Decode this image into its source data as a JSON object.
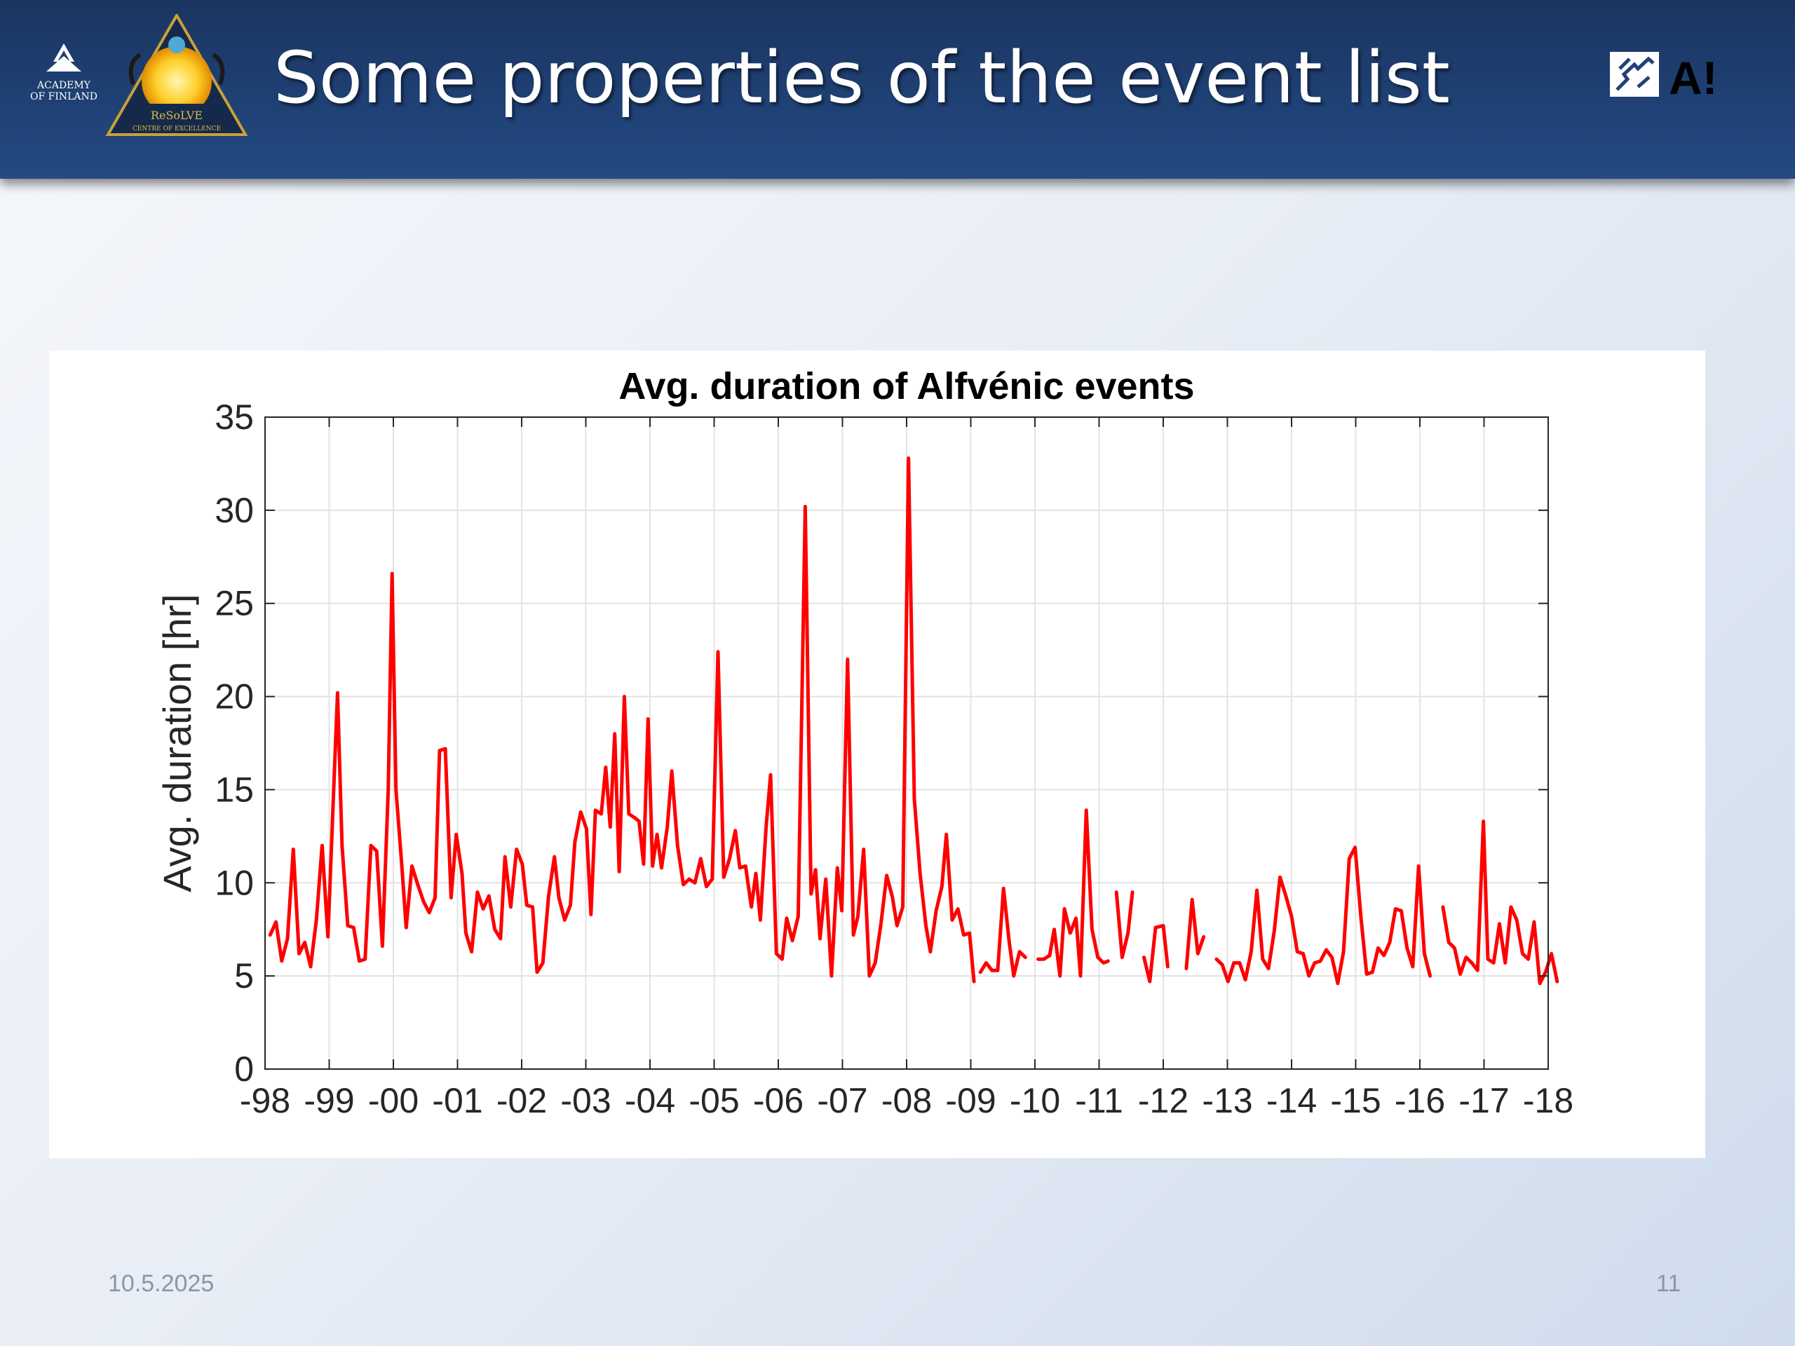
{
  "slide": {
    "title": "Some properties of the event list",
    "date": "10.5.2025",
    "page_number": "11"
  },
  "logos": {
    "academy": [
      "ACADEMY",
      "OF FINLAND"
    ],
    "resolve": [
      "ReSoLVE",
      "CENTRE OF EXCELLENCE"
    ],
    "aalto_mark": "A!"
  },
  "colors": {
    "header_bg": "#1f4175",
    "line": "#ff0000",
    "aalto_yellow": "#ffd100"
  },
  "chart_data": {
    "type": "line",
    "title": "Avg. duration of Alfvénic events",
    "xlabel": "",
    "ylabel": "Avg. duration [hr]",
    "xlim": [
      0,
      20
    ],
    "ylim": [
      0,
      35
    ],
    "xtick_labels": [
      "-98",
      "-99",
      "-00",
      "-01",
      "-02",
      "-03",
      "-04",
      "-05",
      "-06",
      "-07",
      "-08",
      "-09",
      "-10",
      "-11",
      "-12",
      "-13",
      "-14",
      "-15",
      "-16",
      "-17",
      "-18"
    ],
    "yticks": [
      0,
      5,
      10,
      15,
      20,
      25,
      30,
      35
    ],
    "grid": true,
    "series": [
      {
        "color": "#ff0000",
        "segments": [
          [
            [
              0.08,
              7.2
            ],
            [
              0.17,
              7.9
            ],
            [
              0.26,
              5.8
            ],
            [
              0.35,
              7.0
            ],
            [
              0.44,
              11.8
            ],
            [
              0.53,
              6.2
            ],
            [
              0.62,
              6.8
            ],
            [
              0.71,
              5.5
            ],
            [
              0.8,
              8.0
            ],
            [
              0.89,
              12.0
            ],
            [
              0.98,
              7.1
            ],
            [
              1.07,
              15.0
            ],
            [
              1.13,
              20.2
            ],
            [
              1.2,
              12.0
            ],
            [
              1.29,
              7.7
            ],
            [
              1.38,
              7.6
            ],
            [
              1.47,
              5.8
            ],
            [
              1.56,
              5.9
            ],
            [
              1.65,
              12.0
            ],
            [
              1.74,
              11.7
            ],
            [
              1.83,
              6.6
            ],
            [
              1.92,
              15.0
            ],
            [
              1.98,
              26.6
            ],
            [
              2.04,
              15.0
            ],
            [
              2.13,
              11.0
            ],
            [
              2.2,
              7.6
            ],
            [
              2.29,
              10.9
            ],
            [
              2.38,
              9.9
            ],
            [
              2.47,
              9.0
            ],
            [
              2.56,
              8.4
            ],
            [
              2.65,
              9.2
            ],
            [
              2.72,
              17.1
            ],
            [
              2.81,
              17.2
            ],
            [
              2.9,
              9.2
            ],
            [
              2.98,
              12.6
            ],
            [
              3.07,
              10.5
            ],
            [
              3.13,
              7.3
            ],
            [
              3.22,
              6.3
            ],
            [
              3.31,
              9.5
            ],
            [
              3.4,
              8.6
            ],
            [
              3.49,
              9.3
            ],
            [
              3.58,
              7.5
            ],
            [
              3.67,
              7.0
            ],
            [
              3.74,
              11.4
            ],
            [
              3.83,
              8.7
            ],
            [
              3.92,
              11.8
            ],
            [
              4.01,
              11.0
            ],
            [
              4.08,
              8.8
            ],
            [
              4.17,
              8.7
            ],
            [
              4.24,
              5.2
            ],
            [
              4.33,
              5.7
            ],
            [
              4.42,
              9.3
            ],
            [
              4.51,
              11.4
            ],
            [
              4.58,
              9.2
            ],
            [
              4.67,
              8.0
            ],
            [
              4.76,
              8.8
            ],
            [
              4.83,
              12.2
            ],
            [
              4.92,
              13.8
            ],
            [
              5.01,
              12.9
            ],
            [
              5.08,
              8.3
            ],
            [
              5.15,
              13.9
            ],
            [
              5.24,
              13.7
            ],
            [
              5.31,
              16.2
            ],
            [
              5.38,
              13.0
            ],
            [
              5.45,
              18.0
            ],
            [
              5.52,
              10.6
            ],
            [
              5.6,
              20.0
            ],
            [
              5.67,
              13.7
            ],
            [
              5.76,
              13.5
            ],
            [
              5.83,
              13.3
            ],
            [
              5.9,
              11.0
            ],
            [
              5.97,
              18.8
            ],
            [
              6.04,
              10.9
            ],
            [
              6.11,
              12.6
            ],
            [
              6.18,
              10.8
            ],
            [
              6.27,
              13.0
            ],
            [
              6.34,
              16.0
            ],
            [
              6.43,
              12.0
            ],
            [
              6.52,
              9.9
            ],
            [
              6.61,
              10.2
            ],
            [
              6.7,
              10.0
            ],
            [
              6.79,
              11.3
            ],
            [
              6.88,
              9.8
            ],
            [
              6.97,
              10.2
            ],
            [
              7.06,
              22.4
            ],
            [
              7.15,
              10.3
            ],
            [
              7.24,
              11.3
            ],
            [
              7.33,
              12.8
            ],
            [
              7.4,
              10.8
            ],
            [
              7.49,
              10.9
            ],
            [
              7.58,
              8.7
            ],
            [
              7.65,
              10.5
            ],
            [
              7.72,
              8.0
            ],
            [
              7.81,
              13.0
            ],
            [
              7.88,
              15.8
            ],
            [
              7.97,
              6.2
            ],
            [
              8.06,
              5.9
            ],
            [
              8.13,
              8.1
            ],
            [
              8.22,
              6.9
            ],
            [
              8.31,
              8.2
            ],
            [
              8.42,
              30.2
            ],
            [
              8.51,
              9.4
            ],
            [
              8.58,
              10.7
            ],
            [
              8.65,
              7.0
            ],
            [
              8.74,
              10.2
            ],
            [
              8.83,
              5.0
            ],
            [
              8.92,
              10.8
            ],
            [
              8.99,
              8.5
            ],
            [
              9.08,
              22.0
            ],
            [
              9.17,
              7.2
            ],
            [
              9.24,
              8.2
            ],
            [
              9.33,
              11.8
            ],
            [
              9.42,
              5.0
            ],
            [
              9.51,
              5.7
            ],
            [
              9.6,
              7.8
            ],
            [
              9.69,
              10.4
            ],
            [
              9.78,
              9.2
            ],
            [
              9.85,
              7.7
            ],
            [
              9.94,
              8.7
            ],
            [
              10.03,
              32.8
            ],
            [
              10.12,
              14.5
            ],
            [
              10.21,
              10.5
            ],
            [
              10.3,
              7.7
            ],
            [
              10.37,
              6.3
            ],
            [
              10.46,
              8.5
            ],
            [
              10.55,
              9.8
            ],
            [
              10.62,
              12.6
            ],
            [
              10.71,
              8.0
            ],
            [
              10.8,
              8.6
            ],
            [
              10.89,
              7.2
            ],
            [
              10.98,
              7.3
            ],
            [
              11.05,
              4.7
            ]
          ],
          [
            [
              11.15,
              5.2
            ],
            [
              11.24,
              5.7
            ],
            [
              11.33,
              5.3
            ],
            [
              11.42,
              5.3
            ],
            [
              11.51,
              9.7
            ],
            [
              11.6,
              6.8
            ],
            [
              11.67,
              5.0
            ],
            [
              11.76,
              6.3
            ],
            [
              11.85,
              6.0
            ]
          ],
          [
            [
              12.05,
              5.9
            ],
            [
              12.14,
              5.9
            ],
            [
              12.23,
              6.1
            ],
            [
              12.3,
              7.5
            ],
            [
              12.39,
              5.0
            ],
            [
              12.46,
              8.6
            ],
            [
              12.55,
              7.3
            ],
            [
              12.64,
              8.1
            ],
            [
              12.71,
              5.0
            ],
            [
              12.8,
              13.9
            ],
            [
              12.89,
              7.5
            ],
            [
              12.98,
              6.0
            ],
            [
              13.07,
              5.7
            ],
            [
              13.14,
              5.8
            ]
          ],
          [
            [
              13.27,
              9.5
            ],
            [
              13.36,
              6.0
            ],
            [
              13.45,
              7.3
            ],
            [
              13.52,
              9.5
            ]
          ],
          [
            [
              13.7,
              6.0
            ],
            [
              13.79,
              4.7
            ],
            [
              13.88,
              7.6
            ],
            [
              14.0,
              7.7
            ],
            [
              14.07,
              5.5
            ]
          ],
          [
            [
              14.36,
              5.4
            ],
            [
              14.45,
              9.1
            ],
            [
              14.54,
              6.2
            ],
            [
              14.63,
              7.1
            ]
          ],
          [
            [
              14.83,
              5.9
            ],
            [
              14.92,
              5.6
            ],
            [
              15.01,
              4.7
            ],
            [
              15.1,
              5.7
            ],
            [
              15.19,
              5.7
            ],
            [
              15.28,
              4.8
            ],
            [
              15.37,
              6.3
            ],
            [
              15.46,
              9.6
            ],
            [
              15.55,
              5.9
            ],
            [
              15.64,
              5.4
            ],
            [
              15.73,
              7.4
            ],
            [
              15.82,
              10.3
            ],
            [
              15.91,
              9.3
            ],
            [
              16.0,
              8.2
            ],
            [
              16.09,
              6.3
            ],
            [
              16.18,
              6.2
            ],
            [
              16.27,
              5.0
            ],
            [
              16.36,
              5.7
            ],
            [
              16.45,
              5.8
            ],
            [
              16.54,
              6.4
            ],
            [
              16.63,
              6.0
            ],
            [
              16.72,
              4.6
            ],
            [
              16.81,
              6.3
            ],
            [
              16.9,
              11.3
            ],
            [
              16.99,
              11.9
            ],
            [
              17.08,
              8.2
            ],
            [
              17.17,
              5.1
            ],
            [
              17.26,
              5.2
            ],
            [
              17.35,
              6.5
            ],
            [
              17.44,
              6.1
            ],
            [
              17.53,
              6.8
            ],
            [
              17.62,
              8.6
            ],
            [
              17.71,
              8.5
            ],
            [
              17.8,
              6.5
            ],
            [
              17.89,
              5.5
            ],
            [
              17.98,
              10.9
            ],
            [
              18.07,
              6.2
            ],
            [
              18.16,
              5.0
            ]
          ],
          [
            [
              18.36,
              8.7
            ],
            [
              18.45,
              6.8
            ],
            [
              18.54,
              6.5
            ],
            [
              18.63,
              5.1
            ],
            [
              18.72,
              6.0
            ],
            [
              18.81,
              5.7
            ],
            [
              18.9,
              5.3
            ],
            [
              18.99,
              13.3
            ],
            [
              19.06,
              5.9
            ],
            [
              19.15,
              5.7
            ],
            [
              19.24,
              7.8
            ],
            [
              19.33,
              5.7
            ],
            [
              19.42,
              8.7
            ],
            [
              19.51,
              8.0
            ],
            [
              19.6,
              6.2
            ],
            [
              19.69,
              5.9
            ],
            [
              19.78,
              7.9
            ],
            [
              19.87,
              4.6
            ],
            [
              19.96,
              5.2
            ],
            [
              20.05,
              6.2
            ],
            [
              20.14,
              4.7
            ]
          ]
        ]
      }
    ]
  }
}
